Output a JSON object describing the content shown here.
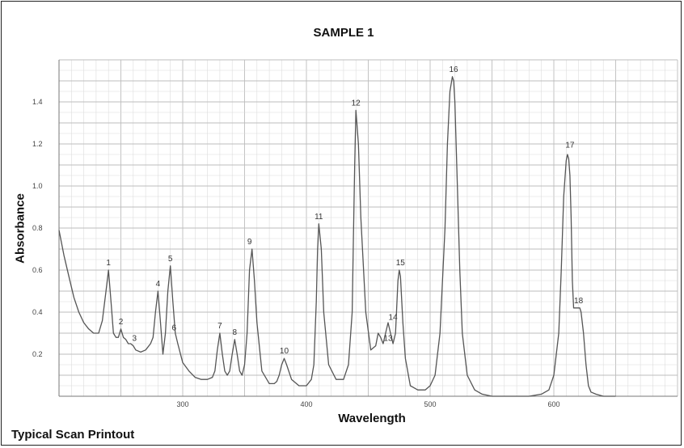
{
  "chart_data": {
    "type": "line",
    "title": "SAMPLE 1",
    "xlabel": "Wavelength",
    "ylabel": "Absorbance",
    "caption": "Typical Scan Printout",
    "xlim": [
      200,
      700
    ],
    "ylim": [
      0,
      1.6
    ],
    "x_ticks": [
      300,
      400,
      500,
      600
    ],
    "y_ticks": [
      0.2,
      0.4,
      0.6,
      0.8,
      1.0,
      1.2,
      1.4
    ],
    "y_tick_labels": [
      "0.2",
      "0.4",
      "0.6",
      "0.8",
      "1.0",
      "1.2",
      "1.4"
    ],
    "grid": true,
    "line_color": "#555555",
    "series": [
      {
        "x": [
          200,
          204,
          208,
          212,
          216,
          220,
          224,
          228,
          232,
          235,
          238,
          240,
          242,
          244,
          246,
          248,
          250,
          252,
          254,
          256,
          258,
          260,
          262,
          266,
          270,
          274,
          276,
          278,
          280,
          282,
          284,
          286,
          288,
          290,
          292,
          294,
          296,
          300,
          305,
          310,
          315,
          320,
          324,
          326,
          328,
          330,
          332,
          334,
          336,
          338,
          340,
          342,
          344,
          346,
          348,
          350,
          352,
          353,
          354,
          356,
          358,
          360,
          364,
          370,
          374,
          376,
          378,
          380,
          382,
          384,
          388,
          394,
          400,
          404,
          406,
          408,
          409,
          410,
          412,
          414,
          418,
          424,
          430,
          434,
          437,
          438,
          439,
          440,
          442,
          444,
          448,
          452,
          456,
          458,
          460,
          462,
          464,
          466,
          468,
          470,
          472,
          474,
          475,
          476,
          478,
          480,
          484,
          490,
          496,
          500,
          504,
          508,
          512,
          514,
          516,
          518,
          519,
          520,
          522,
          524,
          526,
          530,
          536,
          542,
          550,
          560,
          570,
          580,
          590,
          596,
          600,
          604,
          606,
          608,
          610,
          611,
          612,
          613,
          614,
          615,
          616,
          618,
          620,
          621,
          622,
          624,
          626,
          628,
          630,
          634,
          640,
          646,
          650
        ],
        "y": [
          0.79,
          0.67,
          0.57,
          0.47,
          0.4,
          0.35,
          0.32,
          0.3,
          0.3,
          0.36,
          0.5,
          0.6,
          0.45,
          0.3,
          0.28,
          0.28,
          0.32,
          0.28,
          0.27,
          0.25,
          0.25,
          0.24,
          0.22,
          0.21,
          0.22,
          0.25,
          0.28,
          0.4,
          0.5,
          0.35,
          0.2,
          0.3,
          0.5,
          0.62,
          0.45,
          0.3,
          0.25,
          0.16,
          0.12,
          0.09,
          0.08,
          0.08,
          0.09,
          0.12,
          0.22,
          0.3,
          0.2,
          0.12,
          0.1,
          0.12,
          0.2,
          0.27,
          0.2,
          0.12,
          0.1,
          0.15,
          0.3,
          0.45,
          0.6,
          0.7,
          0.55,
          0.35,
          0.12,
          0.06,
          0.06,
          0.07,
          0.1,
          0.15,
          0.18,
          0.15,
          0.08,
          0.05,
          0.05,
          0.08,
          0.15,
          0.45,
          0.7,
          0.82,
          0.7,
          0.4,
          0.15,
          0.08,
          0.08,
          0.15,
          0.4,
          0.75,
          1.1,
          1.36,
          1.2,
          0.85,
          0.4,
          0.22,
          0.24,
          0.3,
          0.28,
          0.25,
          0.3,
          0.35,
          0.3,
          0.25,
          0.3,
          0.55,
          0.6,
          0.57,
          0.35,
          0.18,
          0.05,
          0.03,
          0.03,
          0.05,
          0.1,
          0.3,
          0.8,
          1.2,
          1.45,
          1.52,
          1.5,
          1.4,
          1.0,
          0.6,
          0.3,
          0.1,
          0.03,
          0.01,
          0.0,
          0.0,
          0.0,
          0.0,
          0.01,
          0.03,
          0.1,
          0.3,
          0.6,
          0.95,
          1.12,
          1.15,
          1.13,
          1.05,
          0.85,
          0.55,
          0.42,
          0.42,
          0.42,
          0.42,
          0.4,
          0.3,
          0.15,
          0.05,
          0.02,
          0.01,
          0.0,
          0.0,
          0.0
        ]
      }
    ],
    "peak_labels": [
      {
        "label": "1",
        "x": 240,
        "y": 0.6
      },
      {
        "label": "2",
        "x": 250,
        "y": 0.32
      },
      {
        "label": "3",
        "x": 261,
        "y": 0.24
      },
      {
        "label": "4",
        "x": 280,
        "y": 0.5
      },
      {
        "label": "5",
        "x": 290,
        "y": 0.62
      },
      {
        "label": "6",
        "x": 293,
        "y": 0.29
      },
      {
        "label": "7",
        "x": 330,
        "y": 0.3
      },
      {
        "label": "8",
        "x": 342,
        "y": 0.27
      },
      {
        "label": "9",
        "x": 354,
        "y": 0.7
      },
      {
        "label": "10",
        "x": 382,
        "y": 0.18
      },
      {
        "label": "11",
        "x": 410,
        "y": 0.82
      },
      {
        "label": "12",
        "x": 440,
        "y": 1.36
      },
      {
        "label": "13",
        "x": 466,
        "y": 0.24
      },
      {
        "label": "14",
        "x": 470,
        "y": 0.34
      },
      {
        "label": "15",
        "x": 476,
        "y": 0.6
      },
      {
        "label": "16",
        "x": 519,
        "y": 1.52
      },
      {
        "label": "17",
        "x": 613,
        "y": 1.16
      },
      {
        "label": "18",
        "x": 620,
        "y": 0.42
      }
    ]
  }
}
